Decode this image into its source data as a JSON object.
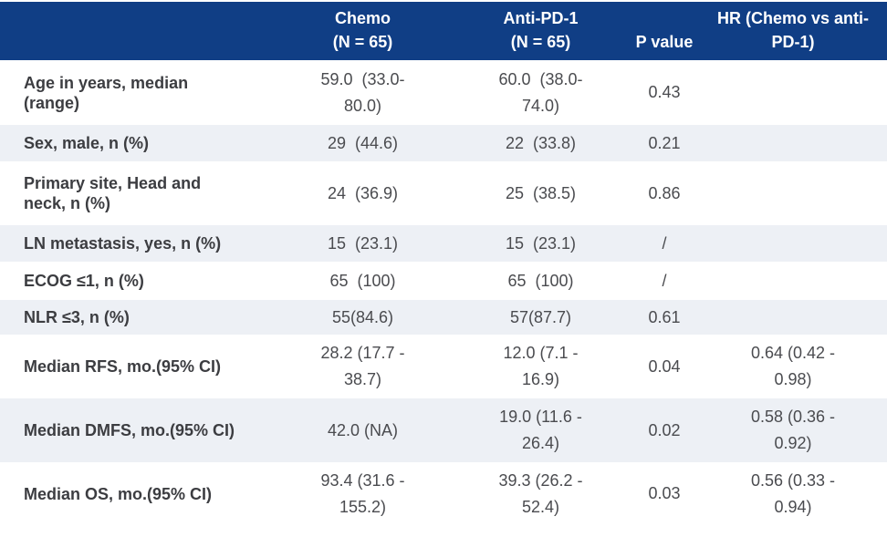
{
  "colors": {
    "header_bg": "#103E85",
    "header_text": "#FFFFFF",
    "row_alt_bg": "#EDF0F5",
    "row_bg": "#FFFFFF",
    "label_text": "#3C3D41",
    "value_text": "#4A4B4F"
  },
  "table": {
    "header": {
      "label": "",
      "chemo": "Chemo\n(N = 65)",
      "anti_pd1": "Anti-PD-1\n(N = 65)",
      "p_value": "P value",
      "hr": "HR (Chemo vs anti-\nPD-1)"
    },
    "rows": [
      {
        "label": "Age in years, median\n(range)",
        "chemo": "59.0  (33.0-\n80.0)",
        "anti_pd1": "60.0  (38.0-\n74.0)",
        "p_value": "0.43",
        "hr": ""
      },
      {
        "label": "Sex, male, n (%)",
        "chemo": "29  (44.6)",
        "anti_pd1": "22  (33.8)",
        "p_value": "0.21",
        "hr": ""
      },
      {
        "label": "Primary site, Head and\nneck, n (%)",
        "chemo": "24  (36.9)",
        "anti_pd1": "25  (38.5)",
        "p_value": "0.86",
        "hr": ""
      },
      {
        "label": "LN metastasis, yes, n (%)",
        "chemo": "15  (23.1)",
        "anti_pd1": "15  (23.1)",
        "p_value": "/",
        "hr": ""
      },
      {
        "label": "ECOG ≤1, n (%)",
        "chemo": "65  (100)",
        "anti_pd1": "65  (100)",
        "p_value": "/",
        "hr": ""
      },
      {
        "label": "NLR ≤3, n (%)",
        "chemo": "55(84.6)",
        "anti_pd1": "57(87.7)",
        "p_value": "0.61",
        "hr": ""
      },
      {
        "label": "Median RFS, mo.(95% CI)",
        "chemo": "28.2 (17.7 -\n38.7)",
        "anti_pd1": "12.0 (7.1 -\n16.9)",
        "p_value": "0.04",
        "hr": "0.64 (0.42 -\n0.98)"
      },
      {
        "label": "Median DMFS, mo.(95% CI)",
        "chemo": "42.0 (NA)",
        "anti_pd1": "19.0 (11.6 -\n26.4)",
        "p_value": "0.02",
        "hr": "0.58 (0.36 -\n0.92)"
      },
      {
        "label": "Median OS, mo.(95% CI)",
        "chemo": "93.4 (31.6 -\n155.2)",
        "anti_pd1": "39.3 (26.2 -\n52.4)",
        "p_value": "0.03",
        "hr": "0.56 (0.33 -\n0.94)"
      }
    ]
  }
}
